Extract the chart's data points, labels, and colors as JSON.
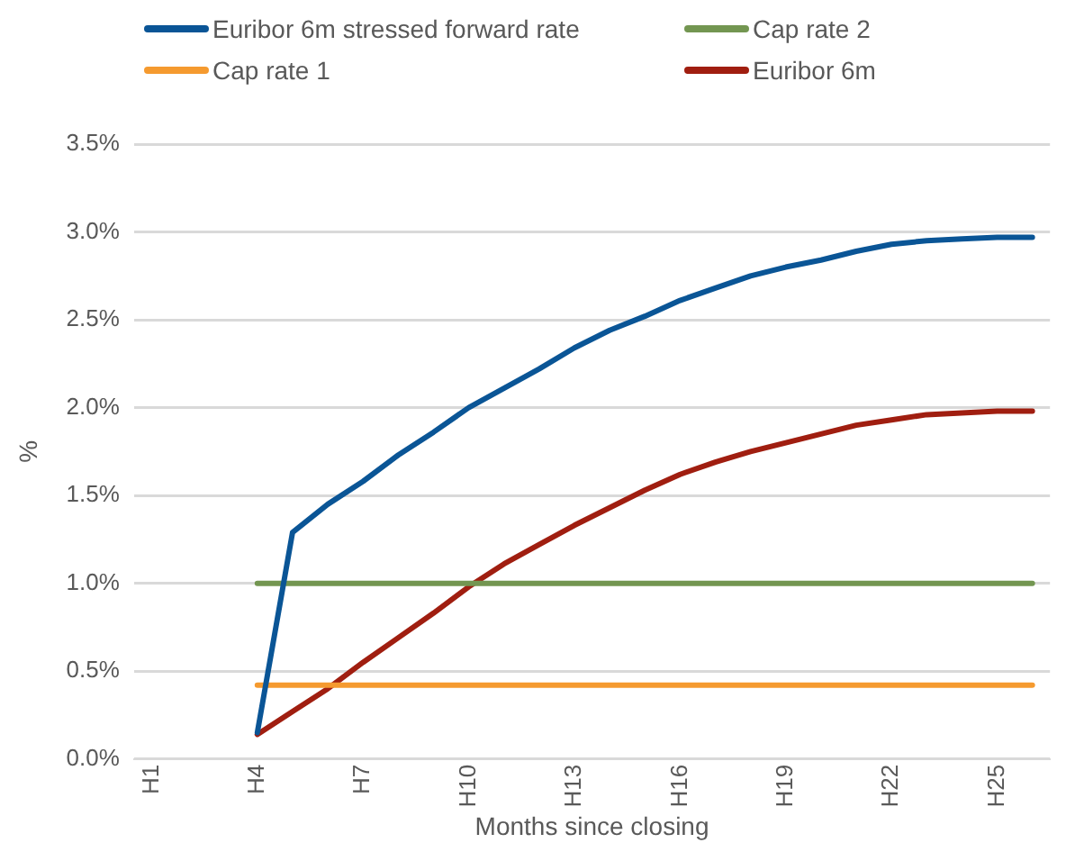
{
  "chart_data": {
    "type": "line",
    "xlabel": "Months since closing",
    "ylabel": "%",
    "categories": [
      "H1",
      null,
      null,
      "H4",
      null,
      null,
      "H7",
      null,
      null,
      "H10",
      null,
      null,
      "H13",
      null,
      null,
      "H16",
      null,
      null,
      "H19",
      null,
      null,
      "H22",
      null,
      null,
      "H25",
      null
    ],
    "series": [
      {
        "name": "Euribor 6m stressed forward rate",
        "color": "#0a5596",
        "values": [
          null,
          null,
          null,
          0.15,
          1.29,
          1.45,
          1.58,
          1.73,
          1.86,
          2.0,
          2.11,
          2.22,
          2.34,
          2.44,
          2.52,
          2.61,
          2.68,
          2.75,
          2.8,
          2.84,
          2.89,
          2.93,
          2.95,
          2.96,
          2.97,
          2.97
        ]
      },
      {
        "name": "Cap rate 2",
        "color": "#739651",
        "values": [
          null,
          null,
          null,
          1.0,
          1.0,
          1.0,
          1.0,
          1.0,
          1.0,
          1.0,
          1.0,
          1.0,
          1.0,
          1.0,
          1.0,
          1.0,
          1.0,
          1.0,
          1.0,
          1.0,
          1.0,
          1.0,
          1.0,
          1.0,
          1.0,
          1.0
        ]
      },
      {
        "name": "Cap rate 1",
        "color": "#f59a2f",
        "values": [
          null,
          null,
          null,
          0.42,
          0.42,
          0.42,
          0.42,
          0.42,
          0.42,
          0.42,
          0.42,
          0.42,
          0.42,
          0.42,
          0.42,
          0.42,
          0.42,
          0.42,
          0.42,
          0.42,
          0.42,
          0.42,
          0.42,
          0.42,
          0.42,
          0.42
        ]
      },
      {
        "name": "Euribor 6m",
        "color": "#a01e10",
        "values": [
          null,
          null,
          null,
          0.14,
          0.27,
          0.4,
          0.55,
          0.69,
          0.83,
          0.98,
          1.11,
          1.22,
          1.33,
          1.43,
          1.53,
          1.62,
          1.69,
          1.75,
          1.8,
          1.85,
          1.9,
          1.93,
          1.96,
          1.97,
          1.98,
          1.98
        ]
      }
    ],
    "ylim": [
      0,
      3.5
    ],
    "yticks": [
      {
        "value": 0,
        "label": "0.0%"
      },
      {
        "value": 0.5,
        "label": "0.5%"
      },
      {
        "value": 1,
        "label": "1.0%"
      },
      {
        "value": 1.5,
        "label": "1.5%"
      },
      {
        "value": 2,
        "label": "2.0%"
      },
      {
        "value": 2.5,
        "label": "2.5%"
      },
      {
        "value": 3,
        "label": "3.0%"
      },
      {
        "value": 3.5,
        "label": "3.5%"
      }
    ],
    "grid": "y",
    "legend": "top",
    "marker": "none",
    "line_style": "solid"
  }
}
